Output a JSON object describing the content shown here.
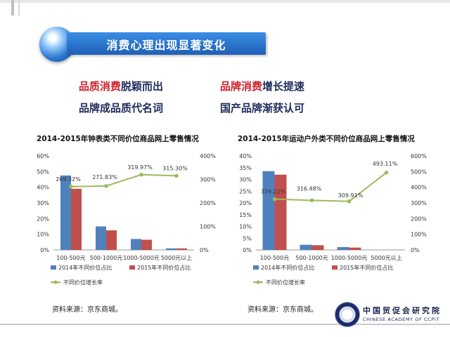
{
  "slide": {
    "title": "消费心理出现显著变化",
    "points": [
      {
        "highlight": "品质消费",
        "rest": "脱颖而出"
      },
      {
        "highlight": "品牌消费",
        "rest": "增长提速"
      },
      {
        "highlight": "",
        "rest": "品牌成品质代名词"
      },
      {
        "highlight": "",
        "rest": "国产品牌渐获认可"
      }
    ],
    "logo": {
      "cn": "中国贸促会研究院",
      "en": "CHINESE ACADEMY OF CCPIT"
    },
    "colors": {
      "bar2014": "#4f81bd",
      "bar2015": "#c0504d",
      "growth": "#9bbb59",
      "banner": "#2a74cf",
      "accent_red": "#d0202a"
    }
  },
  "chart_data": [
    {
      "type": "bar",
      "title": "2014-2015年钟表类不同价位商品网上零售情况",
      "categories": [
        "100-500元",
        "500-1000元",
        "1000-5000元",
        "5000元以上"
      ],
      "series": [
        {
          "name": "2014年不同价位占比",
          "axis": "left",
          "values": [
            47.5,
            15,
            7,
            1
          ]
        },
        {
          "name": "2015年不同价位占比",
          "axis": "left",
          "values": [
            39,
            12.5,
            6.5,
            1
          ]
        },
        {
          "name": "不同价位增长率",
          "axis": "right",
          "type": "line",
          "values": [
            269.32,
            271.83,
            319.97,
            315.3
          ]
        }
      ],
      "data_labels": [
        "269.32%",
        "271.83%",
        "319.97%",
        "315.30%"
      ],
      "left_ticks": [
        "0%",
        "10%",
        "20%",
        "30%",
        "40%",
        "50%",
        "60%"
      ],
      "right_ticks": [
        "0%",
        "100%",
        "200%",
        "300%",
        "400%"
      ],
      "ylim_left": [
        0,
        60
      ],
      "ylim_right": [
        0,
        400
      ],
      "legend_position": "bottom",
      "source": "资料来源：京东商城。"
    },
    {
      "type": "bar",
      "title": "2014-2015年运动户外类不同价位商品网上零售情况",
      "categories": [
        "100-500元",
        "500-1000元",
        "1000-5000元",
        "5000元以上"
      ],
      "series": [
        {
          "name": "2014年不同价位占比",
          "axis": "left",
          "values": [
            33.5,
            2.2,
            1.2,
            0
          ]
        },
        {
          "name": "2015年不同价位占比",
          "axis": "left",
          "values": [
            32,
            2,
            1,
            0
          ]
        },
        {
          "name": "不同价位增长率",
          "axis": "right",
          "type": "line",
          "values": [
            324.22,
            316.48,
            309.91,
            493.11
          ]
        }
      ],
      "data_labels": [
        "324.22%",
        "316.48%",
        "309.91%",
        "493.11%"
      ],
      "left_ticks": [
        "0%",
        "5%",
        "10%",
        "15%",
        "20%",
        "25%",
        "30%",
        "35%",
        "40%"
      ],
      "right_ticks": [
        "0%",
        "100%",
        "200%",
        "300%",
        "400%",
        "500%",
        "600%"
      ],
      "ylim_left": [
        0,
        40
      ],
      "ylim_right": [
        0,
        600
      ],
      "legend_position": "bottom",
      "source": "资料来源：京东商城。"
    }
  ]
}
